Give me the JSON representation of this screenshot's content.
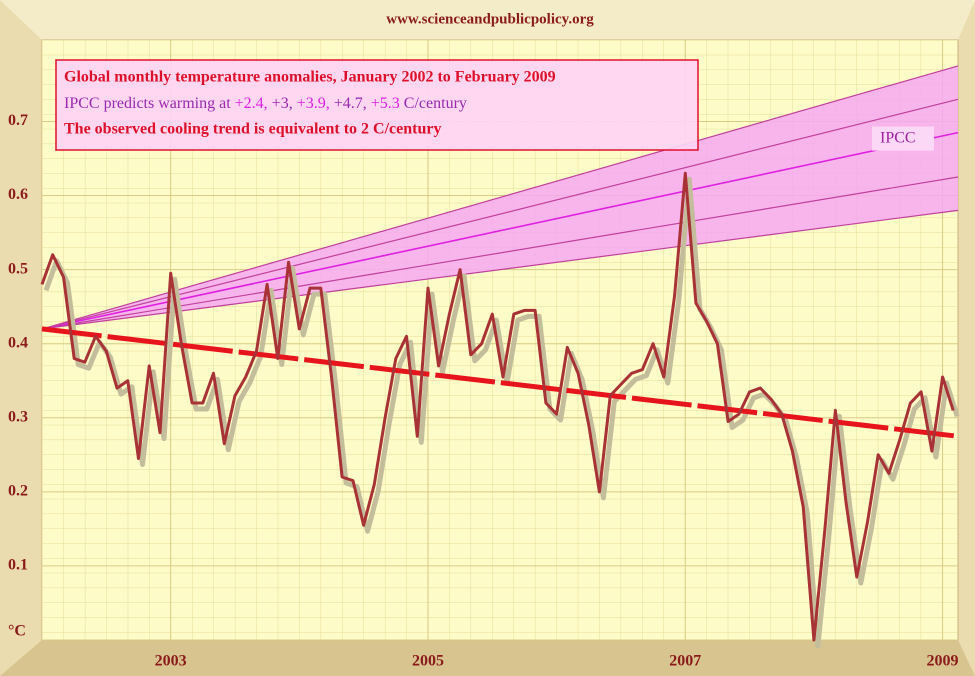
{
  "chart_data": {
    "type": "line",
    "source": "www.scienceandpublicpolicy.org",
    "title": "Global monthly temperature anomalies, January 2002 to February 2009",
    "subtitle_parts": [
      {
        "text": "IPCC predicts warming at ",
        "color": "#9a2ab0"
      },
      {
        "text": "+2.4,",
        "color": "#e020e0"
      },
      {
        "text": " +3,",
        "color": "#9a2ab0"
      },
      {
        "text": " +3.9,",
        "color": "#e020e0"
      },
      {
        "text": " +4.7,",
        "color": "#9a2ab0"
      },
      {
        "text": " +5.3",
        "color": "#e020e0"
      },
      {
        "text": " C/century",
        "color": "#9a2ab0"
      }
    ],
    "note": "The observed cooling trend is equivalent to 2 C/century",
    "x": [
      2002,
      2002.083,
      2002.167,
      2002.25,
      2002.333,
      2002.417,
      2002.5,
      2002.583,
      2002.667,
      2002.75,
      2002.833,
      2002.917,
      2003,
      2003.083,
      2003.167,
      2003.25,
      2003.333,
      2003.417,
      2003.5,
      2003.583,
      2003.667,
      2003.75,
      2003.833,
      2003.917,
      2004,
      2004.083,
      2004.167,
      2004.25,
      2004.333,
      2004.417,
      2004.5,
      2004.583,
      2004.667,
      2004.75,
      2004.833,
      2004.917,
      2005,
      2005.083,
      2005.167,
      2005.25,
      2005.333,
      2005.417,
      2005.5,
      2005.583,
      2005.667,
      2005.75,
      2005.833,
      2005.917,
      2006,
      2006.083,
      2006.167,
      2006.25,
      2006.333,
      2006.417,
      2006.5,
      2006.583,
      2006.667,
      2006.75,
      2006.833,
      2006.917,
      2007,
      2007.083,
      2007.167,
      2007.25,
      2007.333,
      2007.417,
      2007.5,
      2007.583,
      2007.667,
      2007.75,
      2007.833,
      2007.917,
      2008,
      2008.083,
      2008.167,
      2008.25,
      2008.333,
      2008.417,
      2008.5,
      2008.583,
      2008.667,
      2008.75,
      2008.833,
      2008.917,
      2009,
      2009.083
    ],
    "series": [
      {
        "color": "#a83236",
        "values": [
          0.48,
          0.52,
          0.49,
          0.38,
          0.375,
          0.41,
          0.39,
          0.34,
          0.35,
          0.245,
          0.37,
          0.28,
          0.495,
          0.4,
          0.32,
          0.32,
          0.36,
          0.265,
          0.33,
          0.355,
          0.39,
          0.48,
          0.38,
          0.51,
          0.42,
          0.475,
          0.475,
          0.355,
          0.22,
          0.215,
          0.155,
          0.21,
          0.3,
          0.38,
          0.41,
          0.275,
          0.475,
          0.37,
          0.44,
          0.5,
          0.385,
          0.4,
          0.44,
          0.355,
          0.44,
          0.445,
          0.445,
          0.32,
          0.305,
          0.395,
          0.36,
          0.29,
          0.2,
          0.33,
          0.345,
          0.36,
          0.365,
          0.4,
          0.355,
          0.465,
          0.63,
          0.455,
          0.43,
          0.4,
          0.295,
          0.305,
          0.335,
          0.34,
          0.325,
          0.305,
          0.255,
          0.18,
          0.0,
          0.145,
          0.31,
          0.185,
          0.085,
          0.16,
          0.25,
          0.225,
          0.27,
          0.32,
          0.335,
          0.255,
          0.355,
          0.31
        ]
      }
    ],
    "trend": {
      "color": "#e8141c",
      "x": [
        2002,
        2009.12
      ],
      "values": [
        0.42,
        0.275
      ]
    },
    "projections": {
      "label": "IPCC",
      "band_color": "#f7a8f2",
      "line_color": "#c0409c",
      "center_color": "#e020e0",
      "x": [
        2002,
        2009.12
      ],
      "series": [
        {
          "values": [
            0.42,
            0.58
          ]
        },
        {
          "values": [
            0.42,
            0.625
          ]
        },
        {
          "values": [
            0.42,
            0.685
          ]
        },
        {
          "values": [
            0.42,
            0.73
          ]
        },
        {
          "values": [
            0.42,
            0.775
          ]
        }
      ]
    },
    "xlim": [
      2002,
      2009.12
    ],
    "xticks": [
      2003,
      2005,
      2007,
      2009
    ],
    "ylim": [
      0,
      0.81
    ],
    "yticks": [
      {
        "value": 0,
        "label": "°C"
      },
      0.1,
      0.2,
      0.3,
      0.4,
      0.5,
      0.6,
      0.7
    ],
    "grid": true
  }
}
